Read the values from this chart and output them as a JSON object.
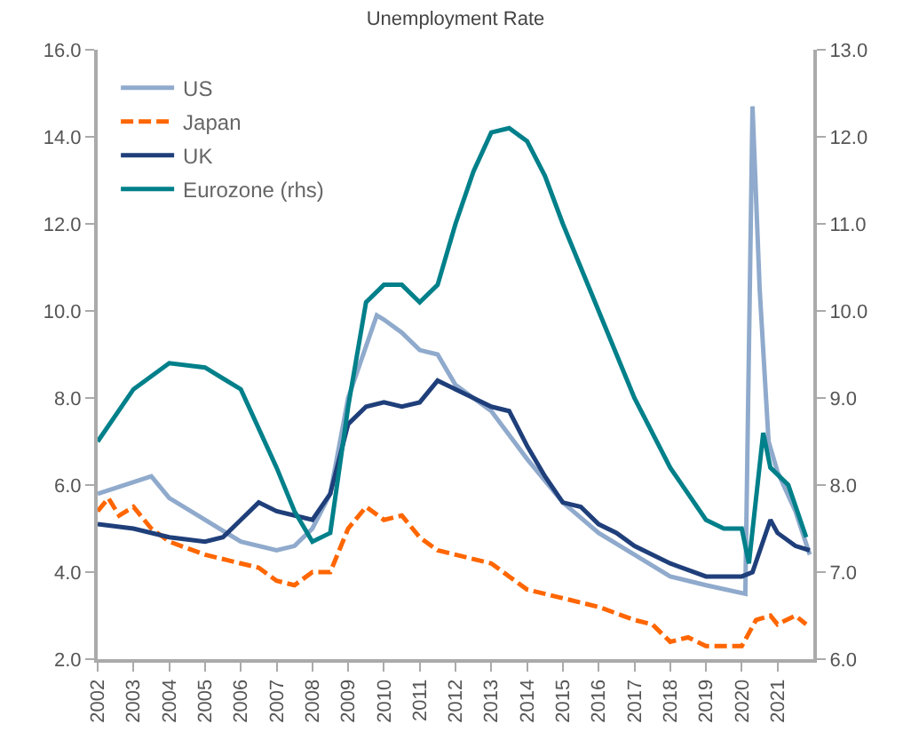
{
  "chart_data": {
    "type": "line",
    "title": "Unemployment Rate",
    "xlim": [
      2002,
      2022
    ],
    "xticks": [
      2002,
      2003,
      2004,
      2005,
      2006,
      2007,
      2008,
      2009,
      2010,
      2011,
      2012,
      2013,
      2014,
      2015,
      2016,
      2017,
      2018,
      2019,
      2020,
      2021
    ],
    "ylim": [
      2,
      16
    ],
    "yticks": [
      {
        "value": 2,
        "label": "2.0"
      },
      {
        "value": 4,
        "label": "4.0"
      },
      {
        "value": 6,
        "label": "6.0"
      },
      {
        "value": 8,
        "label": "8.0"
      },
      {
        "value": 10,
        "label": "10.0"
      },
      {
        "value": 12,
        "label": "12.0"
      },
      {
        "value": 14,
        "label": "14.0"
      },
      {
        "value": 16,
        "label": "16.0"
      }
    ],
    "y2lim": [
      6,
      13
    ],
    "y2ticks": [
      {
        "value": 6,
        "label": "6.0"
      },
      {
        "value": 7,
        "label": "7.0"
      },
      {
        "value": 8,
        "label": "8.0"
      },
      {
        "value": 9,
        "label": "9.0"
      },
      {
        "value": 10,
        "label": "10.0"
      },
      {
        "value": 11,
        "label": "11.0"
      },
      {
        "value": 12,
        "label": "12.0"
      },
      {
        "value": 13,
        "label": "13.0"
      }
    ],
    "legend": "top left",
    "marker": "none",
    "series": [
      {
        "name": "US",
        "color": "#8faacc",
        "line_style": "solid",
        "x": [
          2002,
          2003.5,
          2004,
          2005,
          2006,
          2007,
          2007.5,
          2008,
          2008.5,
          2009,
          2009.8,
          2010,
          2010.5,
          2011,
          2011.5,
          2012,
          2013,
          2014,
          2015,
          2016,
          2017,
          2018,
          2019,
          2020.1,
          2020.3,
          2020.5,
          2020.75,
          2021,
          2021.5,
          2021.9
        ],
        "values": [
          5.8,
          6.2,
          5.7,
          5.2,
          4.7,
          4.5,
          4.6,
          5.0,
          5.8,
          8.0,
          9.9,
          9.8,
          9.5,
          9.1,
          9.0,
          8.3,
          7.7,
          6.6,
          5.6,
          4.9,
          4.4,
          3.9,
          3.7,
          3.5,
          14.7,
          10.5,
          7.0,
          6.3,
          5.4,
          4.4
        ]
      },
      {
        "name": "Japan",
        "color": "#ff6600",
        "line_style": "dashed",
        "x": [
          2002,
          2002.3,
          2002.6,
          2003,
          2003.5,
          2004,
          2005,
          2005.5,
          2006,
          2006.5,
          2007,
          2007.5,
          2008,
          2008.5,
          2009,
          2009.5,
          2010,
          2010.5,
          2011,
          2011.5,
          2012,
          2013,
          2013.5,
          2014,
          2015,
          2015.5,
          2016,
          2017,
          2017.5,
          2018,
          2018.5,
          2019,
          2019.5,
          2020,
          2020.4,
          2020.8,
          2021,
          2021.5,
          2021.8
        ],
        "values": [
          5.4,
          5.7,
          5.3,
          5.5,
          5.0,
          4.7,
          4.4,
          4.3,
          4.2,
          4.1,
          3.8,
          3.7,
          4.0,
          4.0,
          5.0,
          5.5,
          5.2,
          5.3,
          4.8,
          4.5,
          4.4,
          4.2,
          3.9,
          3.6,
          3.4,
          3.3,
          3.2,
          2.9,
          2.8,
          2.4,
          2.5,
          2.3,
          2.3,
          2.3,
          2.9,
          3.0,
          2.8,
          3.0,
          2.8
        ]
      },
      {
        "name": "UK",
        "color": "#1f3f7a",
        "line_style": "solid",
        "x": [
          2002,
          2003,
          2004,
          2005,
          2005.5,
          2006,
          2006.5,
          2007,
          2007.5,
          2008,
          2008.5,
          2009,
          2009.5,
          2010,
          2010.5,
          2011,
          2011.5,
          2012,
          2012.5,
          2013,
          2013.5,
          2014,
          2014.5,
          2015,
          2015.5,
          2016,
          2016.5,
          2017,
          2018,
          2019,
          2019.5,
          2020,
          2020.3,
          2020.8,
          2021,
          2021.5,
          2021.9
        ],
        "values": [
          5.1,
          5.0,
          4.8,
          4.7,
          4.8,
          5.2,
          5.6,
          5.4,
          5.3,
          5.2,
          5.8,
          7.4,
          7.8,
          7.9,
          7.8,
          7.9,
          8.4,
          8.2,
          8.0,
          7.8,
          7.7,
          6.9,
          6.2,
          5.6,
          5.5,
          5.1,
          4.9,
          4.6,
          4.2,
          3.9,
          3.9,
          3.9,
          4.0,
          5.2,
          4.9,
          4.6,
          4.5
        ]
      },
      {
        "name": "Eurozone (rhs)",
        "color": "#00808a",
        "line_style": "solid",
        "axis": "y2",
        "x": [
          2002,
          2003,
          2004,
          2005,
          2006,
          2007,
          2007.5,
          2008,
          2008.5,
          2009,
          2009.5,
          2010,
          2010.5,
          2011,
          2011.5,
          2012,
          2012.5,
          2013,
          2013.5,
          2014,
          2014.5,
          2015,
          2015.5,
          2016,
          2017,
          2018,
          2019,
          2019.5,
          2020,
          2020.2,
          2020.6,
          2020.8,
          2021.3,
          2021.8
        ],
        "values": [
          8.5,
          9.1,
          9.4,
          9.35,
          9.1,
          8.2,
          7.7,
          7.35,
          7.45,
          8.9,
          10.1,
          10.3,
          10.3,
          10.1,
          10.3,
          11.0,
          11.6,
          12.05,
          12.1,
          11.95,
          11.55,
          11.0,
          10.5,
          10.0,
          9.0,
          8.2,
          7.6,
          7.5,
          7.5,
          7.1,
          8.6,
          8.2,
          8.0,
          7.4
        ]
      }
    ]
  }
}
